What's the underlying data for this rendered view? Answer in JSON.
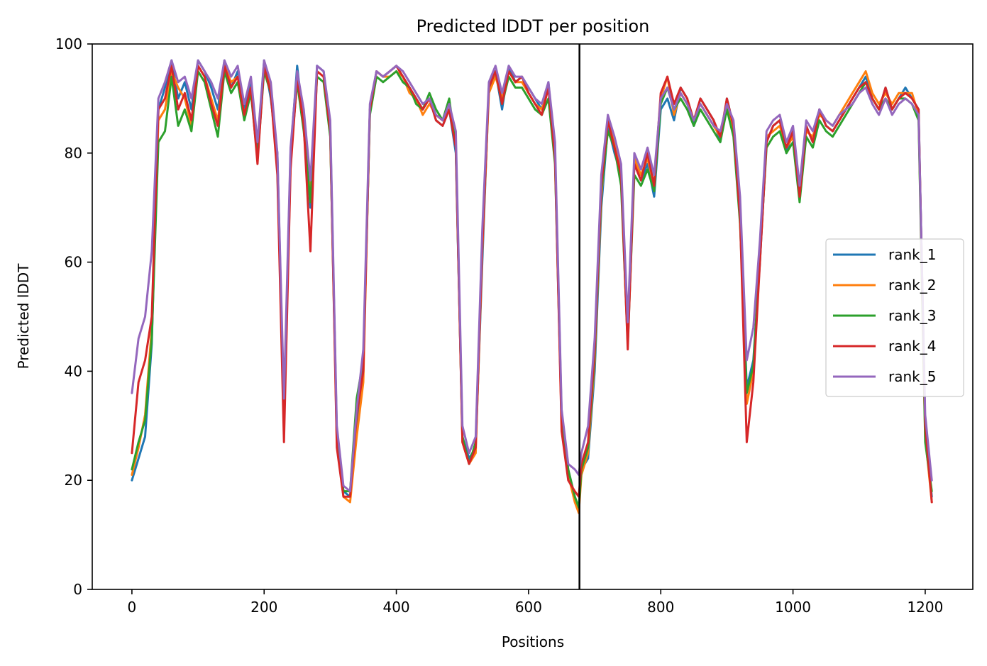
{
  "chart_data": {
    "type": "line",
    "title": "Predicted lDDT per position",
    "xlabel": "Positions",
    "ylabel": "Predicted lDDT",
    "xlim": [
      -60,
      1272
    ],
    "ylim": [
      0,
      100
    ],
    "xticks": [
      0,
      200,
      400,
      600,
      800,
      1000,
      1200
    ],
    "yticks": [
      0,
      20,
      40,
      60,
      80,
      100
    ],
    "grid": false,
    "legend_position": "center-right",
    "vline": {
      "x": 677,
      "color": "#000000"
    },
    "x": [
      0,
      10,
      20,
      30,
      40,
      50,
      60,
      70,
      80,
      90,
      100,
      110,
      120,
      130,
      140,
      150,
      160,
      170,
      180,
      190,
      200,
      210,
      220,
      230,
      240,
      250,
      260,
      270,
      280,
      290,
      300,
      310,
      320,
      330,
      340,
      350,
      360,
      370,
      380,
      390,
      400,
      410,
      420,
      430,
      440,
      450,
      460,
      470,
      480,
      490,
      500,
      510,
      520,
      530,
      540,
      550,
      560,
      570,
      580,
      590,
      600,
      610,
      620,
      630,
      640,
      650,
      660,
      670,
      676,
      680,
      690,
      700,
      710,
      720,
      730,
      740,
      750,
      760,
      770,
      780,
      790,
      800,
      810,
      820,
      830,
      840,
      850,
      860,
      870,
      880,
      890,
      900,
      910,
      920,
      930,
      940,
      950,
      960,
      970,
      980,
      990,
      1000,
      1010,
      1020,
      1030,
      1040,
      1050,
      1060,
      1070,
      1080,
      1090,
      1100,
      1110,
      1120,
      1130,
      1140,
      1150,
      1160,
      1170,
      1180,
      1190,
      1200,
      1210
    ],
    "series": [
      {
        "name": "rank_1",
        "color": "#1f77b4",
        "values": [
          20,
          24,
          28,
          45,
          88,
          92,
          97,
          90,
          93,
          88,
          97,
          95,
          92,
          88,
          97,
          92,
          95,
          88,
          93,
          80,
          97,
          90,
          80,
          32,
          80,
          96,
          85,
          70,
          96,
          95,
          85,
          28,
          18,
          17,
          30,
          40,
          88,
          95,
          94,
          95,
          96,
          94,
          92,
          90,
          88,
          90,
          86,
          85,
          88,
          80,
          28,
          24,
          26,
          60,
          92,
          95,
          88,
          96,
          93,
          94,
          92,
          90,
          88,
          93,
          80,
          32,
          22,
          17,
          15,
          22,
          24,
          40,
          70,
          85,
          80,
          76,
          48,
          78,
          75,
          78,
          72,
          88,
          90,
          86,
          92,
          90,
          85,
          90,
          88,
          86,
          82,
          90,
          85,
          70,
          37,
          42,
          60,
          82,
          85,
          86,
          80,
          84,
          72,
          85,
          82,
          88,
          85,
          84,
          86,
          88,
          90,
          92,
          94,
          90,
          88,
          92,
          88,
          90,
          92,
          90,
          88,
          30,
          17
        ]
      },
      {
        "name": "rank_2",
        "color": "#ff7f0e",
        "values": [
          21,
          26,
          32,
          48,
          86,
          88,
          95,
          92,
          90,
          85,
          96,
          94,
          90,
          86,
          96,
          93,
          94,
          87,
          92,
          82,
          96,
          92,
          78,
          30,
          78,
          94,
          86,
          72,
          95,
          94,
          84,
          27,
          17,
          16,
          28,
          38,
          88,
          95,
          94,
          94,
          95,
          94,
          91,
          90,
          87,
          89,
          87,
          86,
          88,
          82,
          27,
          23,
          25,
          62,
          91,
          94,
          90,
          95,
          93,
          93,
          91,
          89,
          88,
          92,
          80,
          30,
          21,
          16,
          14,
          21,
          25,
          42,
          72,
          86,
          82,
          77,
          46,
          79,
          76,
          79,
          74,
          90,
          94,
          87,
          91,
          89,
          86,
          89,
          87,
          85,
          83,
          89,
          84,
          68,
          34,
          40,
          62,
          83,
          84,
          85,
          81,
          83,
          73,
          84,
          83,
          87,
          86,
          85,
          87,
          89,
          91,
          93,
          95,
          91,
          89,
          91,
          89,
          91,
          91,
          91,
          87,
          28,
          16
        ]
      },
      {
        "name": "rank_3",
        "color": "#2ca02c",
        "values": [
          22,
          27,
          31,
          46,
          82,
          84,
          94,
          85,
          88,
          84,
          95,
          93,
          88,
          83,
          95,
          91,
          93,
          86,
          91,
          79,
          95,
          91,
          77,
          31,
          79,
          93,
          84,
          71,
          94,
          93,
          83,
          29,
          18,
          18,
          35,
          42,
          87,
          94,
          93,
          94,
          95,
          93,
          92,
          89,
          88,
          91,
          88,
          86,
          90,
          81,
          28,
          23,
          27,
          64,
          92,
          95,
          89,
          94,
          92,
          92,
          90,
          88,
          87,
          90,
          78,
          31,
          22,
          17,
          15,
          22,
          26,
          43,
          73,
          84,
          81,
          74,
          45,
          76,
          74,
          77,
          73,
          89,
          92,
          88,
          90,
          88,
          85,
          88,
          86,
          84,
          82,
          88,
          83,
          67,
          36,
          41,
          61,
          81,
          83,
          84,
          80,
          82,
          71,
          83,
          81,
          86,
          84,
          83,
          85,
          87,
          89,
          91,
          93,
          90,
          88,
          90,
          88,
          90,
          90,
          89,
          86,
          27,
          18
        ]
      },
      {
        "name": "rank_4",
        "color": "#d62728",
        "values": [
          25,
          38,
          42,
          50,
          88,
          90,
          96,
          88,
          91,
          86,
          96,
          94,
          89,
          85,
          96,
          92,
          94,
          87,
          92,
          78,
          96,
          91,
          76,
          27,
          77,
          94,
          85,
          62,
          95,
          94,
          84,
          26,
          17,
          17,
          32,
          40,
          88,
          95,
          94,
          95,
          96,
          94,
          92,
          90,
          88,
          90,
          86,
          85,
          88,
          81,
          27,
          23,
          26,
          63,
          92,
          95,
          89,
          95,
          93,
          94,
          91,
          89,
          87,
          92,
          79,
          29,
          20,
          18,
          17,
          23,
          27,
          44,
          74,
          86,
          81,
          76,
          44,
          78,
          75,
          80,
          74,
          91,
          94,
          89,
          92,
          90,
          86,
          90,
          88,
          86,
          83,
          90,
          85,
          68,
          27,
          38,
          60,
          82,
          85,
          86,
          81,
          84,
          72,
          85,
          82,
          88,
          85,
          84,
          86,
          88,
          90,
          92,
          93,
          90,
          88,
          92,
          88,
          90,
          91,
          90,
          88,
          30,
          16
        ]
      },
      {
        "name": "rank_5",
        "color": "#9467bd",
        "values": [
          36,
          46,
          50,
          62,
          90,
          93,
          97,
          93,
          94,
          90,
          97,
          95,
          93,
          90,
          97,
          94,
          96,
          89,
          94,
          82,
          97,
          93,
          80,
          35,
          81,
          95,
          88,
          75,
          96,
          95,
          86,
          30,
          19,
          18,
          33,
          44,
          89,
          95,
          94,
          95,
          96,
          95,
          93,
          91,
          89,
          90,
          87,
          86,
          89,
          84,
          30,
          25,
          28,
          66,
          93,
          96,
          91,
          96,
          94,
          94,
          92,
          90,
          89,
          93,
          82,
          33,
          23,
          22,
          21,
          25,
          30,
          46,
          76,
          87,
          83,
          78,
          49,
          80,
          77,
          81,
          76,
          90,
          92,
          88,
          91,
          89,
          86,
          89,
          87,
          85,
          84,
          89,
          86,
          72,
          42,
          48,
          64,
          84,
          86,
          87,
          82,
          85,
          74,
          86,
          84,
          88,
          86,
          85,
          87,
          88,
          89,
          91,
          92,
          89,
          87,
          90,
          87,
          89,
          90,
          89,
          87,
          32,
          20
        ]
      }
    ]
  }
}
